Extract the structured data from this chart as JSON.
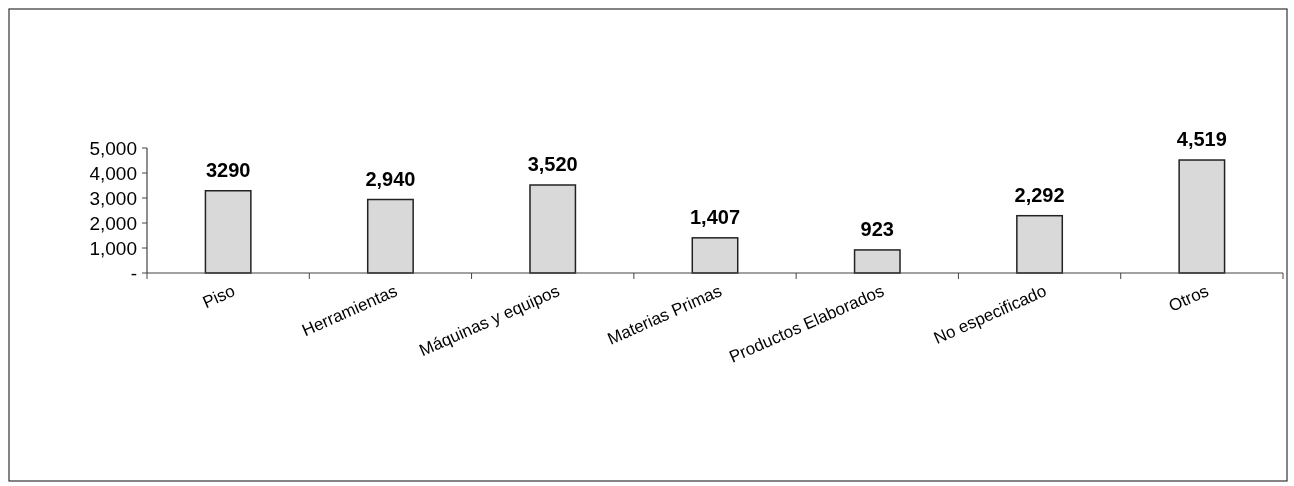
{
  "chart_data": {
    "type": "bar",
    "categories": [
      "Piso",
      "Herramientas",
      "Máquinas y equipos",
      "Materias Primas",
      "Productos Elaborados",
      "No especificado",
      "Otros"
    ],
    "values": [
      3290,
      2940,
      3520,
      1407,
      923,
      2292,
      4519
    ],
    "value_labels": [
      "3290",
      "2,940",
      "3,520",
      "1,407",
      "923",
      "2,292",
      "4,519"
    ],
    "color": "#d9d9d9",
    "ylim": [
      0,
      5000
    ],
    "yticks": [
      {
        "value": 0,
        "label": "-"
      },
      {
        "value": 1000,
        "label": "1,000"
      },
      {
        "value": 2000,
        "label": "2,000"
      },
      {
        "value": 3000,
        "label": "3,000"
      },
      {
        "value": 4000,
        "label": "4,000"
      },
      {
        "value": 5000,
        "label": "5,000"
      }
    ],
    "grid": false
  }
}
